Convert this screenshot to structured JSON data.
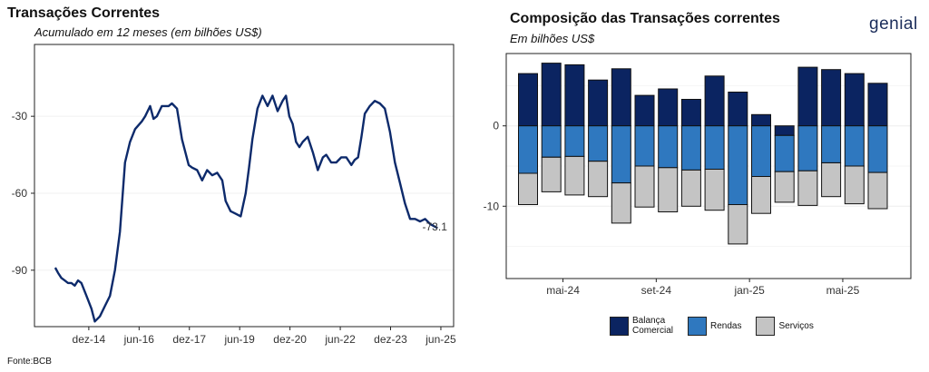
{
  "brand": {
    "name": "genial"
  },
  "source": "Fonte:BCB",
  "colors": {
    "line": "#0d2a6b",
    "balanca": "#0b2461",
    "rendas": "#2f78bf",
    "servicos": "#c4c4c4"
  },
  "chart_data": [
    {
      "type": "line",
      "title": "Transações Correntes",
      "subtitle": "Acumulado em 12 meses (em bilhões US$)",
      "y_ticks": [
        -30,
        -60,
        -90
      ],
      "ylim": [
        -112,
        -2
      ],
      "xlim": [
        2013.3,
        2025.8
      ],
      "x_tick_labels": [
        "dez-14",
        "jun-16",
        "dez-17",
        "jun-19",
        "dez-20",
        "jun-22",
        "dez-23",
        "jun-25"
      ],
      "x_tick_values": [
        2014.92,
        2016.42,
        2017.92,
        2019.42,
        2020.92,
        2022.42,
        2023.92,
        2025.42
      ],
      "annotation": {
        "text": "-73.1",
        "x": 2025.3,
        "y": -73.1
      },
      "grid": "horizontal",
      "series": [
        {
          "x": [
            2013.92,
            2014.0,
            2014.1,
            2014.2,
            2014.3,
            2014.4,
            2014.5,
            2014.6,
            2014.7,
            2014.85,
            2015.0,
            2015.1,
            2015.25,
            2015.4,
            2015.55,
            2015.7,
            2015.85,
            2016.0,
            2016.15,
            2016.3,
            2016.5,
            2016.6,
            2016.75,
            2016.85,
            2016.95,
            2017.1,
            2017.2,
            2017.3,
            2017.4,
            2017.55,
            2017.7,
            2017.9,
            2018.0,
            2018.15,
            2018.3,
            2018.45,
            2018.6,
            2018.75,
            2018.9,
            2019.0,
            2019.15,
            2019.3,
            2019.45,
            2019.6,
            2019.7,
            2019.8,
            2019.95,
            2020.1,
            2020.25,
            2020.4,
            2020.55,
            2020.7,
            2020.8,
            2020.9,
            2021.0,
            2021.1,
            2021.2,
            2021.3,
            2021.45,
            2021.6,
            2021.75,
            2021.9,
            2022.0,
            2022.15,
            2022.3,
            2022.45,
            2022.6,
            2022.75,
            2022.85,
            2022.95,
            2023.05,
            2023.15,
            2023.3,
            2023.45,
            2023.6,
            2023.75,
            2023.9,
            2024.05,
            2024.2,
            2024.35,
            2024.5,
            2024.65,
            2024.8,
            2024.95,
            2025.1,
            2025.25,
            2025.32
          ],
          "y": [
            -89,
            -91,
            -93,
            -94,
            -95,
            -95,
            -96,
            -94,
            -95,
            -100,
            -105,
            -110,
            -108,
            -104,
            -100,
            -90,
            -75,
            -48,
            -40,
            -35,
            -32,
            -30,
            -26,
            -31,
            -30,
            -26,
            -26,
            -26,
            -25,
            -27,
            -39,
            -49,
            -50,
            -51,
            -55,
            -51,
            -53,
            -52,
            -55,
            -63,
            -67,
            -68,
            -69,
            -60,
            -50,
            -39,
            -27,
            -22,
            -26,
            -22,
            -28,
            -24,
            -22,
            -30,
            -33,
            -40,
            -42,
            -40,
            -38,
            -44,
            -51,
            -46,
            -45,
            -48,
            -48,
            -46,
            -46,
            -49,
            -47,
            -46,
            -38,
            -29,
            -26,
            -24,
            -25,
            -27,
            -36,
            -48,
            -56,
            -64,
            -70,
            -70,
            -71,
            -70,
            -72,
            -73.1,
            -73.5
          ]
        }
      ]
    },
    {
      "type": "bar",
      "stacked": true,
      "title": "Composição das Transações correntes",
      "subtitle": "Em bilhões US$",
      "y_ticks": [
        0,
        -10
      ],
      "ylim": [
        -19,
        9
      ],
      "x_tick_labels": [
        "mai-24",
        "set-24",
        "jan-25",
        "mai-25"
      ],
      "x_tick_index": [
        1.5,
        5.5,
        9.5,
        13.5
      ],
      "series": [
        {
          "name": "Balança\nComercial",
          "color": "#0b2461",
          "values": [
            6.5,
            7.8,
            7.6,
            5.7,
            7.1,
            3.8,
            4.6,
            3.3,
            6.2,
            4.2,
            1.4,
            -1.2,
            7.3,
            7.0,
            6.5,
            5.3
          ]
        },
        {
          "name": "Rendas",
          "color": "#2f78bf",
          "values": [
            -5.9,
            -3.9,
            -3.8,
            -4.4,
            -7.1,
            -5.0,
            -5.2,
            -5.5,
            -5.4,
            -9.8,
            -6.3,
            -4.5,
            -5.6,
            -4.6,
            -5.0,
            -5.8
          ]
        },
        {
          "name": "Serviços",
          "color": "#c4c4c4",
          "values": [
            -3.9,
            -4.3,
            -4.8,
            -4.4,
            -5.0,
            -5.1,
            -5.5,
            -4.5,
            -5.1,
            -4.9,
            -4.6,
            -3.8,
            -4.3,
            -4.2,
            -4.7,
            -4.5
          ]
        }
      ]
    }
  ]
}
